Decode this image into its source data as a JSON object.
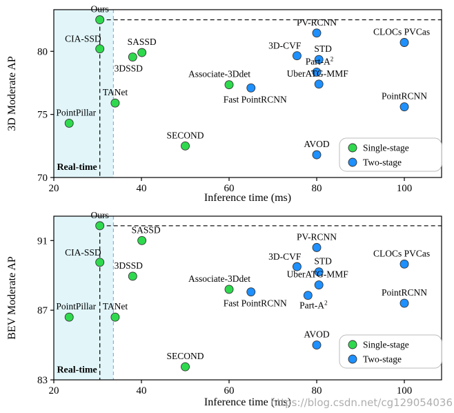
{
  "watermark": "https://blog.csdn.net/cg129054036",
  "colors": {
    "single_stage": "#2fd94e",
    "two_stage": "#1e90ff",
    "point_edge": "#333333",
    "ours_label": "#ee2211",
    "realtime_label": "#1515c0",
    "realtime_fill": "#e2f6fa",
    "realtime_border": "#88aaee",
    "dashed_line": "#111111"
  },
  "legend": {
    "items": [
      {
        "label": "Single-stage",
        "stage": "single"
      },
      {
        "label": "Two-stage",
        "stage": "two"
      }
    ]
  },
  "chart_data": [
    {
      "type": "scatter",
      "xlabel": "Inference time (ms)",
      "ylabel": "3D Moderate AP",
      "xlim": [
        20,
        108.5
      ],
      "ylim": [
        70,
        83.3
      ],
      "xticks": [
        20,
        40,
        60,
        80,
        100
      ],
      "yticks": [
        70,
        75,
        80
      ],
      "legend_position": "lower right",
      "realtime": {
        "label": "Real-time",
        "region": [
          20,
          33.6
        ],
        "text_x": 20.7,
        "text_y": 70.6
      },
      "ours_line": {
        "x": 30.5,
        "y": 82.5
      },
      "points": [
        {
          "label": "Ours",
          "x": 30.5,
          "y": 82.5,
          "stage": "single",
          "label_pos": "above",
          "highlight": "ours"
        },
        {
          "label": "CIA-SSD",
          "x": 30.5,
          "y": 80.2,
          "stage": "single",
          "label_pos": "above-left"
        },
        {
          "label": "SASSD",
          "x": 40.1,
          "y": 79.9,
          "stage": "single",
          "label_pos": "above"
        },
        {
          "label": "3DSSD",
          "x": 38,
          "y": 79.55,
          "stage": "single",
          "label_pos": "below",
          "ldx": -6
        },
        {
          "label": "TANet",
          "x": 34,
          "y": 75.9,
          "stage": "single",
          "label_pos": "above"
        },
        {
          "label": "PointPillar",
          "x": 23.5,
          "y": 74.3,
          "stage": "single",
          "label_pos": "above",
          "ldx": 10
        },
        {
          "label": "SECOND",
          "x": 50,
          "y": 72.5,
          "stage": "single",
          "label_pos": "above"
        },
        {
          "label": "Associate-3Ddet",
          "x": 60,
          "y": 77.35,
          "stage": "single",
          "label_pos": "above",
          "ldx": -14
        },
        {
          "label": "Fast PointRCNN",
          "x": 65,
          "y": 77.1,
          "stage": "two",
          "label_pos": "below",
          "ldx": 6
        },
        {
          "label": "3D-CVF",
          "x": 75.5,
          "y": 79.65,
          "stage": "two",
          "label_pos": "above-left",
          "ldx": 4
        },
        {
          "label": "STD",
          "x": 80.5,
          "y": 79.35,
          "stage": "two",
          "label_pos": "above",
          "ldx": 6
        },
        {
          "label": "PV-RCNN",
          "x": 80,
          "y": 81.45,
          "stage": "two",
          "label_pos": "above"
        },
        {
          "label": "Part-A",
          "label_sup": "2",
          "x": 80,
          "y": 78.35,
          "stage": "two",
          "label_pos": "above",
          "ldx": 4
        },
        {
          "label": "UberATG-MMF",
          "x": 80.5,
          "y": 77.4,
          "stage": "two",
          "label_pos": "above",
          "ldx": -2
        },
        {
          "label": "AVOD",
          "x": 80,
          "y": 71.8,
          "stage": "two",
          "label_pos": "above"
        },
        {
          "label": "PointRCNN",
          "x": 100,
          "y": 75.6,
          "stage": "two",
          "label_pos": "above"
        },
        {
          "label": "CLOCs PVCas",
          "x": 100,
          "y": 80.7,
          "stage": "two",
          "label_pos": "above",
          "ldx": -4
        }
      ]
    },
    {
      "type": "scatter",
      "xlabel": "Inference time (ms)",
      "ylabel": "BEV Moderate AP",
      "xlim": [
        20,
        108.5
      ],
      "ylim": [
        83,
        92.4
      ],
      "xticks": [
        20,
        40,
        60,
        80,
        100
      ],
      "yticks": [
        83,
        87,
        91
      ],
      "legend_position": "lower right",
      "realtime": {
        "label": "Real-time",
        "region": [
          20,
          33.6
        ],
        "text_x": 20.7,
        "text_y": 83.42
      },
      "ours_line": {
        "x": 30.5,
        "y": 91.85
      },
      "points": [
        {
          "label": "Ours",
          "x": 30.5,
          "y": 91.85,
          "stage": "single",
          "label_pos": "above",
          "highlight": "ours"
        },
        {
          "label": "SASSD",
          "x": 40.1,
          "y": 91.0,
          "stage": "single",
          "label_pos": "above",
          "ldx": 6
        },
        {
          "label": "CIA-SSD",
          "x": 30.5,
          "y": 89.75,
          "stage": "single",
          "label_pos": "above-left"
        },
        {
          "label": "3DSSD",
          "x": 38,
          "y": 88.95,
          "stage": "single",
          "label_pos": "above",
          "ldx": -6
        },
        {
          "label": "PointPillar",
          "x": 23.5,
          "y": 86.6,
          "stage": "single",
          "label_pos": "above",
          "ldx": 10
        },
        {
          "label": "TANet",
          "x": 34,
          "y": 86.6,
          "stage": "single",
          "label_pos": "above"
        },
        {
          "label": "SECOND",
          "x": 50,
          "y": 83.75,
          "stage": "single",
          "label_pos": "above"
        },
        {
          "label": "Associate-3Ddet",
          "x": 60,
          "y": 88.2,
          "stage": "single",
          "label_pos": "above",
          "ldx": -14
        },
        {
          "label": "Fast PointRCNN",
          "x": 65,
          "y": 88.05,
          "stage": "two",
          "label_pos": "below",
          "ldx": 6
        },
        {
          "label": "3D-CVF",
          "x": 75.5,
          "y": 89.5,
          "stage": "two",
          "label_pos": "above-left",
          "ldx": 4
        },
        {
          "label": "STD",
          "x": 80.5,
          "y": 89.2,
          "stage": "two",
          "label_pos": "above",
          "ldx": 6
        },
        {
          "label": "PV-RCNN",
          "x": 80,
          "y": 90.6,
          "stage": "two",
          "label_pos": "above"
        },
        {
          "label": "UberATG-MMF",
          "x": 80.5,
          "y": 88.45,
          "stage": "two",
          "label_pos": "above",
          "ldx": -2
        },
        {
          "label": "Part-A",
          "label_sup": "2",
          "x": 78,
          "y": 87.85,
          "stage": "two",
          "label_pos": "below",
          "ldx": 8,
          "ldy": -2
        },
        {
          "label": "AVOD",
          "x": 80,
          "y": 85.0,
          "stage": "two",
          "label_pos": "above"
        },
        {
          "label": "PointRCNN",
          "x": 100,
          "y": 87.4,
          "stage": "two",
          "label_pos": "above"
        },
        {
          "label": "CLOCs PVCas",
          "x": 100,
          "y": 89.65,
          "stage": "two",
          "label_pos": "above",
          "ldx": -4
        }
      ]
    }
  ]
}
